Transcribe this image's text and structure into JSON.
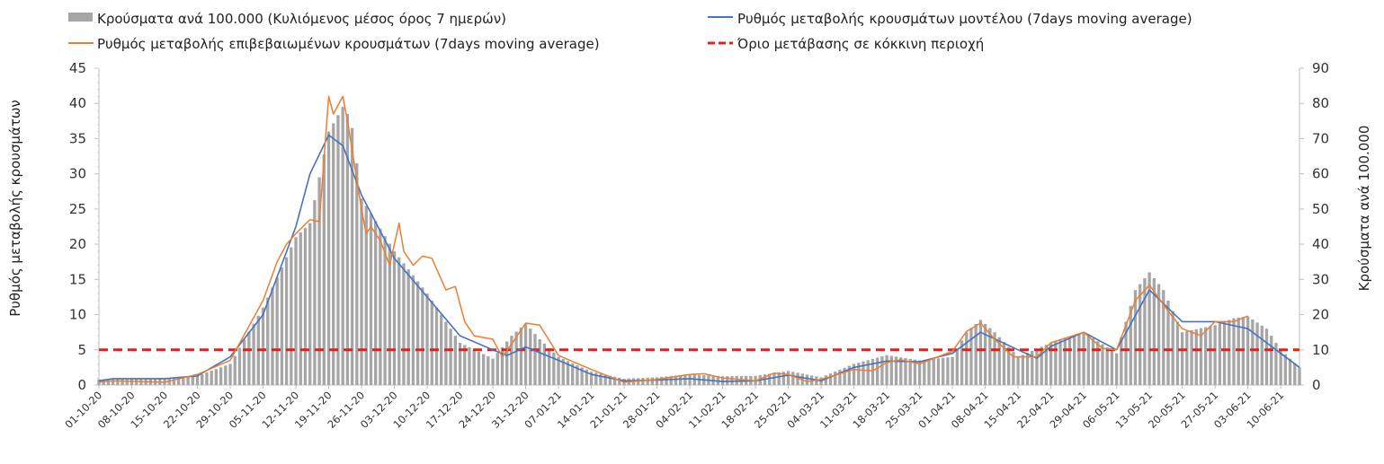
{
  "chart_data": {
    "type": "bar",
    "legend": {
      "placement": "top",
      "items": [
        "Κρούσματα ανά 100.000 (Κυλιόμενος μέσος όρος 7 ημερών)",
        "Ρυθμός μεταβολής κρουσμάτων μοντέλου (7days moving average)",
        "Ρυθμός μεταβολής επιβεβαιωμένων κρουσμάτων (7days moving average)",
        "Όριο μετάβασης σε κόκκινη περιοχή"
      ]
    },
    "y_left_label": "Ρυθμός μεταβολής κρουσμάτων",
    "y_right_label": "Κρούσματα ανά 100.000",
    "y_left_ticks": [
      "0",
      "5",
      "10",
      "15",
      "20",
      "25",
      "30",
      "35",
      "40",
      "45"
    ],
    "y_right_ticks": [
      "0",
      "10",
      "20",
      "30",
      "40",
      "50",
      "60",
      "70",
      "80",
      "90"
    ],
    "ylim_left": [
      0,
      45
    ],
    "ylim_right": [
      0,
      90
    ],
    "x_tick_labels": [
      "01-10-20",
      "08-10-20",
      "15-10-20",
      "22-10-20",
      "29-10-20",
      "05-11-20",
      "12-11-20",
      "19-11-20",
      "26-11-20",
      "03-12-20",
      "10-12-20",
      "17-12-20",
      "24-12-20",
      "31-12-20",
      "07-01-21",
      "14-01-21",
      "21-01-21",
      "28-01-21",
      "04-02-21",
      "11-02-21",
      "18-02-21",
      "25-02-21",
      "04-03-21",
      "11-03-21",
      "18-03-21",
      "25-03-21",
      "01-04-21",
      "08-04-21",
      "15-04-21",
      "22-04-21",
      "29-04-21",
      "06-05-21",
      "13-05-21",
      "20-05-21",
      "27-05-21",
      "03-06-21",
      "10-06-21"
    ],
    "x_start": "2020-10-01",
    "x_end": "2021-06-14",
    "threshold_left": 5,
    "colors": {
      "bars": "#a6a6a6",
      "model": "#4472c4",
      "confirmed": "#ed7d31",
      "threshold": "#e0201b"
    },
    "series": [
      {
        "name": "Κρούσματα ανά 100.000 (Κυλιόμενος μέσος όρος 7 ημερών)",
        "axis": "right",
        "style": "bars",
        "points": [
          [
            "2020-10-01",
            1.6
          ],
          [
            "2020-10-08",
            1.7
          ],
          [
            "2020-10-15",
            1.7
          ],
          [
            "2020-10-22",
            2.6
          ],
          [
            "2020-10-29",
            6
          ],
          [
            "2020-11-05",
            22
          ],
          [
            "2020-11-12",
            42
          ],
          [
            "2020-11-15",
            46
          ],
          [
            "2020-11-19",
            72
          ],
          [
            "2020-11-22",
            79
          ],
          [
            "2020-11-23",
            77
          ],
          [
            "2020-11-24",
            73
          ],
          [
            "2020-11-26",
            53
          ],
          [
            "2020-12-03",
            38
          ],
          [
            "2020-12-10",
            26
          ],
          [
            "2020-12-17",
            12
          ],
          [
            "2020-12-24",
            7.5
          ],
          [
            "2020-12-28",
            14
          ],
          [
            "2020-12-31",
            17.5
          ],
          [
            "2021-01-03",
            13
          ],
          [
            "2021-01-07",
            8
          ],
          [
            "2021-01-14",
            3.8
          ],
          [
            "2021-01-21",
            1.8
          ],
          [
            "2021-01-28",
            2.2
          ],
          [
            "2021-02-04",
            3.0
          ],
          [
            "2021-02-11",
            2.5
          ],
          [
            "2021-02-18",
            2.6
          ],
          [
            "2021-02-25",
            4.0
          ],
          [
            "2021-03-04",
            2.2
          ],
          [
            "2021-03-11",
            6
          ],
          [
            "2021-03-18",
            8.5
          ],
          [
            "2021-03-25",
            7
          ],
          [
            "2021-04-01",
            8
          ],
          [
            "2021-04-04",
            15
          ],
          [
            "2021-04-07",
            18.5
          ],
          [
            "2021-04-10",
            15
          ],
          [
            "2021-04-15",
            8
          ],
          [
            "2021-04-22",
            12
          ],
          [
            "2021-04-29",
            15
          ],
          [
            "2021-05-06",
            9
          ],
          [
            "2021-05-10",
            27
          ],
          [
            "2021-05-13",
            32
          ],
          [
            "2021-05-16",
            27
          ],
          [
            "2021-05-20",
            15
          ],
          [
            "2021-05-27",
            17
          ],
          [
            "2021-05-31",
            19
          ],
          [
            "2021-06-03",
            19.5
          ],
          [
            "2021-06-07",
            16
          ],
          [
            "2021-06-10",
            10
          ],
          [
            "2021-06-14",
            5
          ]
        ]
      },
      {
        "name": "Ρυθμός μεταβολής κρουσμάτων μοντέλου (7days moving average)",
        "axis": "left",
        "style": "line",
        "points": [
          [
            "2020-10-01",
            0.6
          ],
          [
            "2020-10-04",
            0.9
          ],
          [
            "2020-10-15",
            0.9
          ],
          [
            "2020-10-22",
            1.3
          ],
          [
            "2020-10-29",
            4
          ],
          [
            "2020-11-05",
            10
          ],
          [
            "2020-11-12",
            22.5
          ],
          [
            "2020-11-15",
            30
          ],
          [
            "2020-11-19",
            35.5
          ],
          [
            "2020-11-22",
            34
          ],
          [
            "2020-11-26",
            27
          ],
          [
            "2020-12-03",
            18
          ],
          [
            "2020-12-10",
            12.5
          ],
          [
            "2020-12-17",
            7
          ],
          [
            "2020-12-24",
            5
          ],
          [
            "2020-12-27",
            4.2
          ],
          [
            "2020-12-31",
            5.4
          ],
          [
            "2021-01-07",
            3.5
          ],
          [
            "2021-01-14",
            1.5
          ],
          [
            "2021-01-21",
            0.6
          ],
          [
            "2021-01-28",
            0.7
          ],
          [
            "2021-02-04",
            0.9
          ],
          [
            "2021-02-11",
            0.5
          ],
          [
            "2021-02-18",
            0.6
          ],
          [
            "2021-02-25",
            1.4
          ],
          [
            "2021-03-04",
            0.6
          ],
          [
            "2021-03-11",
            2.5
          ],
          [
            "2021-03-18",
            3.4
          ],
          [
            "2021-03-25",
            3.3
          ],
          [
            "2021-04-01",
            4.5
          ],
          [
            "2021-04-07",
            7.5
          ],
          [
            "2021-04-15",
            5
          ],
          [
            "2021-04-19",
            3.8
          ],
          [
            "2021-04-22",
            5.5
          ],
          [
            "2021-04-29",
            7.5
          ],
          [
            "2021-05-06",
            5
          ],
          [
            "2021-05-13",
            13.5
          ],
          [
            "2021-05-20",
            9
          ],
          [
            "2021-05-27",
            9
          ],
          [
            "2021-06-03",
            8
          ],
          [
            "2021-06-10",
            4.5
          ],
          [
            "2021-06-14",
            2.5
          ]
        ]
      },
      {
        "name": "Ρυθμός μεταβολής επιβεβαιωμένων κρουσμάτων (7days moving average)",
        "axis": "left",
        "style": "line",
        "points": [
          [
            "2020-10-01",
            0.4
          ],
          [
            "2020-10-04",
            0.6
          ],
          [
            "2020-10-15",
            0.4
          ],
          [
            "2020-10-22",
            1.5
          ],
          [
            "2020-10-29",
            3.5
          ],
          [
            "2020-11-05",
            12
          ],
          [
            "2020-11-08",
            17.5
          ],
          [
            "2020-11-10",
            20
          ],
          [
            "2020-11-12",
            21.5
          ],
          [
            "2020-11-15",
            23.5
          ],
          [
            "2020-11-17",
            23.2
          ],
          [
            "2020-11-19",
            41
          ],
          [
            "2020-11-20",
            38.5
          ],
          [
            "2020-11-22",
            41
          ],
          [
            "2020-11-23",
            37.5
          ],
          [
            "2020-11-26",
            25
          ],
          [
            "2020-11-27",
            21.5
          ],
          [
            "2020-11-28",
            22.5
          ],
          [
            "2020-11-30",
            20.5
          ],
          [
            "2020-12-02",
            17
          ],
          [
            "2020-12-04",
            23
          ],
          [
            "2020-12-05",
            19
          ],
          [
            "2020-12-07",
            17
          ],
          [
            "2020-12-09",
            18.3
          ],
          [
            "2020-12-11",
            18
          ],
          [
            "2020-12-14",
            13.5
          ],
          [
            "2020-12-16",
            14
          ],
          [
            "2020-12-18",
            9
          ],
          [
            "2020-12-20",
            7
          ],
          [
            "2020-12-24",
            6.5
          ],
          [
            "2020-12-26",
            4
          ],
          [
            "2020-12-28",
            5.8
          ],
          [
            "2020-12-31",
            8.8
          ],
          [
            "2021-01-03",
            8.5
          ],
          [
            "2021-01-07",
            4.2
          ],
          [
            "2021-01-14",
            2.2
          ],
          [
            "2021-01-21",
            0.4
          ],
          [
            "2021-01-28",
            0.8
          ],
          [
            "2021-02-04",
            1.5
          ],
          [
            "2021-02-07",
            1.6
          ],
          [
            "2021-02-11",
            1
          ],
          [
            "2021-02-18",
            0.6
          ],
          [
            "2021-02-22",
            1.7
          ],
          [
            "2021-02-25",
            1.5
          ],
          [
            "2021-03-01",
            0.5
          ],
          [
            "2021-03-04",
            0.8
          ],
          [
            "2021-03-11",
            2.2
          ],
          [
            "2021-03-15",
            2.0
          ],
          [
            "2021-03-18",
            3.2
          ],
          [
            "2021-03-21",
            3.6
          ],
          [
            "2021-03-25",
            3
          ],
          [
            "2021-04-01",
            4.8
          ],
          [
            "2021-04-04",
            7.6
          ],
          [
            "2021-04-07",
            8.8
          ],
          [
            "2021-04-10",
            6.5
          ],
          [
            "2021-04-14",
            4
          ],
          [
            "2021-04-19",
            4
          ],
          [
            "2021-04-22",
            6
          ],
          [
            "2021-04-29",
            7.5
          ],
          [
            "2021-05-03",
            5.2
          ],
          [
            "2021-05-06",
            5
          ],
          [
            "2021-05-10",
            12
          ],
          [
            "2021-05-13",
            14.2
          ],
          [
            "2021-05-17",
            10.5
          ],
          [
            "2021-05-20",
            8
          ],
          [
            "2021-05-24",
            7
          ],
          [
            "2021-05-27",
            9
          ],
          [
            "2021-05-31",
            9
          ],
          [
            "2021-06-03",
            9.8
          ]
        ]
      },
      {
        "name": "Όριο μετάβασης σε κόκκινη περιοχή",
        "axis": "left",
        "style": "dashed-line",
        "points": [
          [
            "2020-10-01",
            5
          ],
          [
            "2021-06-14",
            5
          ]
        ]
      }
    ]
  }
}
